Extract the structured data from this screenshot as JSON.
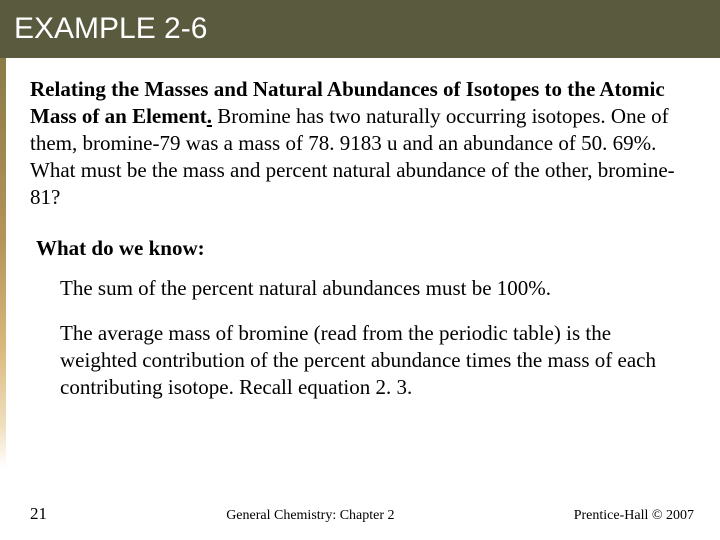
{
  "header": {
    "title": "EXAMPLE 2-6",
    "background_color": "#5a5a3f",
    "title_color": "#ffffff",
    "title_fontsize": 30
  },
  "problem": {
    "lead_bold": "Relating the Masses and Natural Abundances of Isotopes to the Atomic Mass of an Element",
    "period_underlined": ".",
    "body": "  Bromine has two naturally occurring isotopes.  One of them, bromine-79 was a mass of 78. 9183 u and an abundance of 50. 69%.  What must be the mass and percent natural abundance of the other, bromine-81?",
    "fontsize": 21
  },
  "subhead": "What do we know:",
  "know_points": [
    "The sum of the percent natural abundances must be 100%.",
    "The average mass of bromine (read from the periodic table) is the weighted contribution of the percent abundance times the mass of each contributing isotope.  Recall equation 2. 3."
  ],
  "footer": {
    "page_number": "21",
    "center_text": "General Chemistry: Chapter 2",
    "right_text": "Prentice-Hall © 2007"
  },
  "left_accent_gradient": [
    "#8a7a45",
    "#b5945a",
    "#d9b77a",
    "#f0e0c0",
    "#ffffff"
  ]
}
